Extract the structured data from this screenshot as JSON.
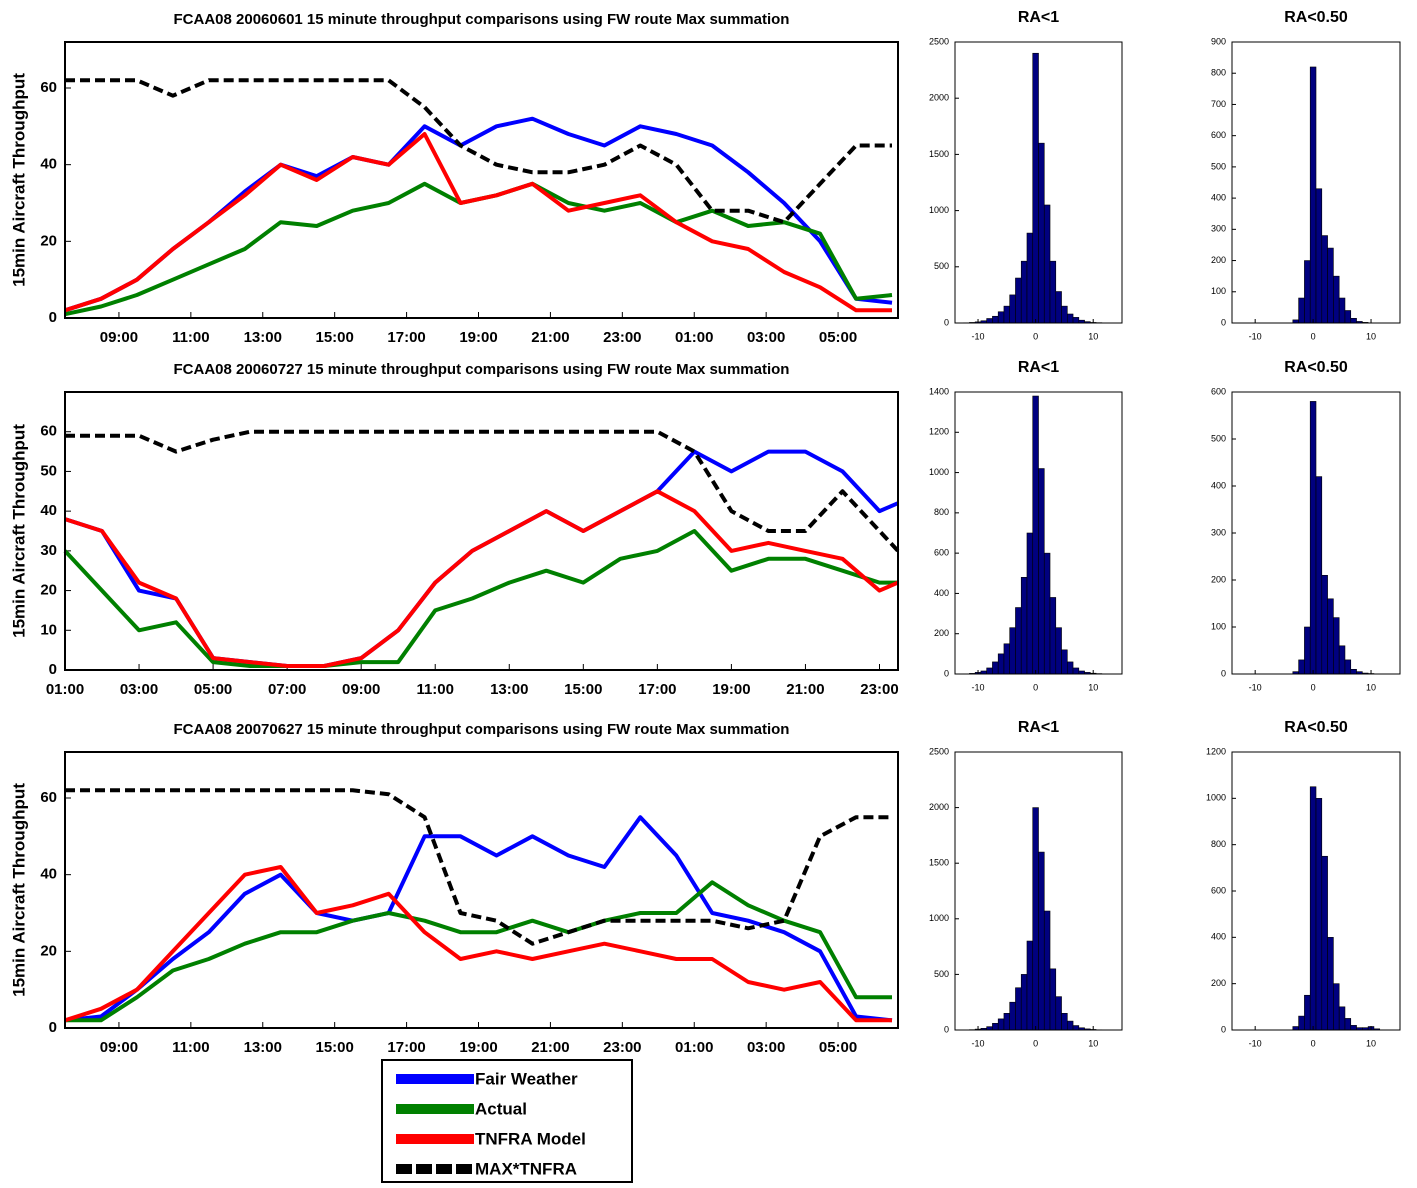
{
  "chart_data": [
    {
      "type": "line",
      "title": "FCAA08 20060601 15 minute throughput comparisons using FW route Max summation",
      "ylabel": "15min Aircraft Throughput",
      "x": [
        "07:30",
        "08:30",
        "09:30",
        "10:30",
        "11:30",
        "12:30",
        "13:30",
        "14:30",
        "15:30",
        "16:30",
        "17:30",
        "18:30",
        "19:30",
        "20:30",
        "21:30",
        "22:30",
        "23:30",
        "00:30",
        "01:30",
        "02:30",
        "03:30",
        "04:30",
        "05:30",
        "06:30"
      ],
      "xlim": [
        "07:30",
        "06:40"
      ],
      "xticks": [
        "09:00",
        "11:00",
        "13:00",
        "15:00",
        "17:00",
        "19:00",
        "21:00",
        "23:00",
        "01:00",
        "03:00",
        "05:00"
      ],
      "ylim": [
        0,
        72
      ],
      "yticks": [
        0,
        20,
        40,
        60
      ],
      "series": [
        {
          "color": "#0000ff",
          "values": [
            2,
            5,
            10,
            18,
            25,
            33,
            40,
            37,
            42,
            40,
            50,
            45,
            50,
            52,
            48,
            45,
            50,
            48,
            45,
            38,
            30,
            20,
            5,
            4
          ]
        },
        {
          "color": "#008000",
          "values": [
            1,
            3,
            6,
            10,
            14,
            18,
            25,
            24,
            28,
            30,
            35,
            30,
            32,
            35,
            30,
            28,
            30,
            25,
            28,
            24,
            25,
            22,
            5,
            6
          ]
        },
        {
          "color": "#ff0000",
          "values": [
            2,
            5,
            10,
            18,
            25,
            32,
            40,
            36,
            42,
            40,
            48,
            30,
            32,
            35,
            28,
            30,
            32,
            25,
            20,
            18,
            12,
            8,
            2,
            2
          ]
        },
        {
          "color": "#000000",
          "linestyle": "dashed",
          "values": [
            62,
            62,
            62,
            58,
            62,
            62,
            62,
            62,
            62,
            62,
            55,
            45,
            40,
            38,
            38,
            40,
            45,
            40,
            28,
            28,
            25,
            35,
            45,
            45
          ]
        }
      ]
    },
    {
      "type": "histogram",
      "title": "RA<1",
      "bins": [
        -12.5,
        -11.5,
        -10.5,
        -9.5,
        -8.5,
        -7.5,
        -6.5,
        -5.5,
        -4.5,
        -3.5,
        -2.5,
        -1.5,
        -0.5,
        0.5,
        1.5,
        2.5,
        3.5,
        4.5,
        5.5,
        6.5,
        7.5,
        8.5,
        9.5,
        10.5,
        11.5,
        12.5
      ],
      "counts": [
        2,
        5,
        10,
        20,
        40,
        60,
        100,
        150,
        250,
        400,
        550,
        800,
        2400,
        1600,
        1050,
        550,
        280,
        150,
        80,
        50,
        25,
        12,
        5,
        3,
        1
      ],
      "color": "#00007f",
      "xlim": [
        -14,
        15
      ],
      "xticks": [
        -10,
        0,
        10
      ],
      "ylim": [
        0,
        2500
      ],
      "yticks": [
        0,
        500,
        1000,
        1500,
        2000,
        2500
      ]
    },
    {
      "type": "histogram",
      "title": "RA<0.50",
      "bins": [
        -12.5,
        -11.5,
        -10.5,
        -9.5,
        -8.5,
        -7.5,
        -6.5,
        -5.5,
        -4.5,
        -3.5,
        -2.5,
        -1.5,
        -0.5,
        0.5,
        1.5,
        2.5,
        3.5,
        4.5,
        5.5,
        6.5,
        7.5,
        8.5,
        9.5,
        10.5,
        11.5,
        12.5
      ],
      "counts": [
        0,
        0,
        0,
        0,
        0,
        0,
        0,
        0,
        0,
        10,
        80,
        200,
        820,
        430,
        280,
        240,
        150,
        80,
        40,
        15,
        5,
        2,
        0,
        0,
        0
      ],
      "color": "#00007f",
      "xlim": [
        -14,
        15
      ],
      "xticks": [
        -10,
        0,
        10
      ],
      "ylim": [
        0,
        900
      ],
      "yticks": [
        0,
        100,
        200,
        300,
        400,
        500,
        600,
        700,
        800,
        900
      ]
    },
    {
      "type": "line",
      "title": "FCAA08 20060727 15 minute throughput comparisons using FW route Max summation",
      "ylabel": "15min Aircraft Throughput",
      "x": [
        "01:00",
        "02:00",
        "03:00",
        "04:00",
        "05:00",
        "06:00",
        "07:00",
        "08:00",
        "09:00",
        "10:00",
        "11:00",
        "12:00",
        "13:00",
        "14:00",
        "15:00",
        "16:00",
        "17:00",
        "18:00",
        "19:00",
        "20:00",
        "21:00",
        "22:00",
        "23:00",
        "23:30"
      ],
      "xlim": [
        "01:00",
        "23:30"
      ],
      "xticks": [
        "01:00",
        "03:00",
        "05:00",
        "07:00",
        "09:00",
        "11:00",
        "13:00",
        "15:00",
        "17:00",
        "19:00",
        "21:00",
        "23:00"
      ],
      "ylim": [
        0,
        70
      ],
      "yticks": [
        0,
        10,
        20,
        30,
        40,
        50,
        60
      ],
      "series": [
        {
          "color": "#0000ff",
          "values": [
            38,
            35,
            20,
            18,
            3,
            2,
            1,
            1,
            3,
            10,
            22,
            30,
            35,
            40,
            35,
            40,
            45,
            55,
            50,
            55,
            55,
            50,
            40,
            42
          ]
        },
        {
          "color": "#008000",
          "values": [
            30,
            20,
            10,
            12,
            2,
            1,
            1,
            1,
            2,
            2,
            15,
            18,
            22,
            25,
            22,
            28,
            30,
            35,
            25,
            28,
            28,
            25,
            22,
            22
          ]
        },
        {
          "color": "#ff0000",
          "values": [
            38,
            35,
            22,
            18,
            3,
            2,
            1,
            1,
            3,
            10,
            22,
            30,
            35,
            40,
            35,
            40,
            45,
            40,
            30,
            32,
            30,
            28,
            20,
            22
          ]
        },
        {
          "color": "#000000",
          "linestyle": "dashed",
          "values": [
            59,
            59,
            59,
            55,
            58,
            60,
            60,
            60,
            60,
            60,
            60,
            60,
            60,
            60,
            60,
            60,
            60,
            55,
            40,
            35,
            35,
            45,
            35,
            30
          ]
        }
      ]
    },
    {
      "type": "histogram",
      "title": "RA<1",
      "bins": [
        -12.5,
        -11.5,
        -10.5,
        -9.5,
        -8.5,
        -7.5,
        -6.5,
        -5.5,
        -4.5,
        -3.5,
        -2.5,
        -1.5,
        -0.5,
        0.5,
        1.5,
        2.5,
        3.5,
        4.5,
        5.5,
        6.5,
        7.5,
        8.5,
        9.5,
        10.5,
        11.5,
        12.5
      ],
      "counts": [
        1,
        3,
        8,
        15,
        30,
        60,
        100,
        150,
        230,
        330,
        480,
        700,
        1380,
        1020,
        600,
        380,
        230,
        120,
        60,
        30,
        15,
        8,
        4,
        2,
        1
      ],
      "color": "#00007f",
      "xlim": [
        -14,
        15
      ],
      "xticks": [
        -10,
        0,
        10
      ],
      "ylim": [
        0,
        1400
      ],
      "yticks": [
        0,
        200,
        400,
        600,
        800,
        1000,
        1200,
        1400
      ]
    },
    {
      "type": "histogram",
      "title": "RA<0.50",
      "bins": [
        -12.5,
        -11.5,
        -10.5,
        -9.5,
        -8.5,
        -7.5,
        -6.5,
        -5.5,
        -4.5,
        -3.5,
        -2.5,
        -1.5,
        -0.5,
        0.5,
        1.5,
        2.5,
        3.5,
        4.5,
        5.5,
        6.5,
        7.5,
        8.5,
        9.5,
        10.5,
        11.5,
        12.5
      ],
      "counts": [
        0,
        0,
        0,
        0,
        0,
        0,
        0,
        0,
        0,
        5,
        30,
        100,
        580,
        420,
        210,
        160,
        120,
        60,
        30,
        10,
        5,
        2,
        1,
        0,
        0
      ],
      "color": "#00007f",
      "xlim": [
        -14,
        15
      ],
      "xticks": [
        -10,
        0,
        10
      ],
      "ylim": [
        0,
        600
      ],
      "yticks": [
        0,
        100,
        200,
        300,
        400,
        500,
        600
      ]
    },
    {
      "type": "line",
      "title": "FCAA08 20070627 15 minute throughput comparisons using FW route Max summation",
      "ylabel": "15min Aircraft Throughput",
      "x": [
        "07:30",
        "08:30",
        "09:30",
        "10:30",
        "11:30",
        "12:30",
        "13:30",
        "14:30",
        "15:30",
        "16:30",
        "17:30",
        "18:30",
        "19:30",
        "20:30",
        "21:30",
        "22:30",
        "23:30",
        "00:30",
        "01:30",
        "02:30",
        "03:30",
        "04:30",
        "05:30",
        "06:30"
      ],
      "xlim": [
        "07:30",
        "06:40"
      ],
      "xticks": [
        "09:00",
        "11:00",
        "13:00",
        "15:00",
        "17:00",
        "19:00",
        "21:00",
        "23:00",
        "01:00",
        "03:00",
        "05:00"
      ],
      "ylim": [
        0,
        72
      ],
      "yticks": [
        0,
        20,
        40,
        60
      ],
      "legend": "bottom",
      "series": [
        {
          "name": "Fair Weather",
          "color": "#0000ff",
          "values": [
            2,
            3,
            10,
            18,
            25,
            35,
            40,
            30,
            28,
            30,
            50,
            50,
            45,
            50,
            45,
            42,
            55,
            45,
            30,
            28,
            25,
            20,
            3,
            2
          ]
        },
        {
          "name": "Actual",
          "color": "#008000",
          "values": [
            2,
            2,
            8,
            15,
            18,
            22,
            25,
            25,
            28,
            30,
            28,
            25,
            25,
            28,
            25,
            28,
            30,
            30,
            38,
            32,
            28,
            25,
            8,
            8
          ]
        },
        {
          "name": "TNFRA Model",
          "color": "#ff0000",
          "values": [
            2,
            5,
            10,
            20,
            30,
            40,
            42,
            30,
            32,
            35,
            25,
            18,
            20,
            18,
            20,
            22,
            20,
            18,
            18,
            12,
            10,
            12,
            2,
            2
          ]
        },
        {
          "name": "MAX*TNFRA",
          "color": "#000000",
          "linestyle": "dashed",
          "values": [
            62,
            62,
            62,
            62,
            62,
            62,
            62,
            62,
            62,
            61,
            55,
            30,
            28,
            22,
            25,
            28,
            28,
            28,
            28,
            26,
            28,
            50,
            55,
            55
          ]
        }
      ]
    },
    {
      "type": "histogram",
      "title": "RA<1",
      "bins": [
        -12.5,
        -11.5,
        -10.5,
        -9.5,
        -8.5,
        -7.5,
        -6.5,
        -5.5,
        -4.5,
        -3.5,
        -2.5,
        -1.5,
        -0.5,
        0.5,
        1.5,
        2.5,
        3.5,
        4.5,
        5.5,
        6.5,
        7.5,
        8.5,
        9.5,
        10.5,
        11.5,
        12.5
      ],
      "counts": [
        1,
        3,
        8,
        15,
        30,
        60,
        100,
        150,
        250,
        380,
        500,
        800,
        2000,
        1600,
        1070,
        550,
        300,
        150,
        80,
        40,
        20,
        10,
        5,
        2,
        1
      ],
      "color": "#00007f",
      "xlim": [
        -14,
        15
      ],
      "xticks": [
        -10,
        0,
        10
      ],
      "ylim": [
        0,
        2500
      ],
      "yticks": [
        0,
        500,
        1000,
        1500,
        2000,
        2500
      ]
    },
    {
      "type": "histogram",
      "title": "RA<0.50",
      "bins": [
        -12.5,
        -11.5,
        -10.5,
        -9.5,
        -8.5,
        -7.5,
        -6.5,
        -5.5,
        -4.5,
        -3.5,
        -2.5,
        -1.5,
        -0.5,
        0.5,
        1.5,
        2.5,
        3.5,
        4.5,
        5.5,
        6.5,
        7.5,
        8.5,
        9.5,
        10.5,
        11.5,
        12.5
      ],
      "counts": [
        0,
        0,
        0,
        0,
        0,
        0,
        0,
        0,
        0,
        15,
        60,
        150,
        1050,
        1000,
        750,
        400,
        200,
        100,
        50,
        20,
        10,
        10,
        15,
        5,
        0
      ],
      "color": "#00007f",
      "xlim": [
        -14,
        15
      ],
      "xticks": [
        -10,
        0,
        10
      ],
      "ylim": [
        0,
        1200
      ],
      "yticks": [
        0,
        200,
        400,
        600,
        800,
        1000,
        1200
      ]
    }
  ]
}
